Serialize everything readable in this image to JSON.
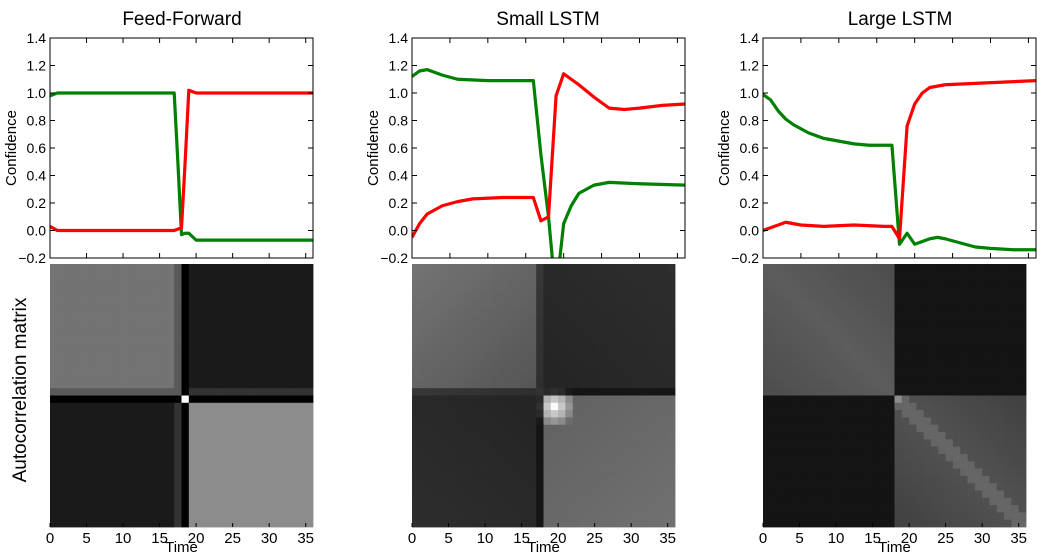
{
  "figure": {
    "row_label": "Autocorrelation matrix"
  },
  "chart_data": [
    {
      "type": "line",
      "title": "Feed-Forward",
      "xlabel": "",
      "ylabel": "Confidence",
      "ylim": [
        -0.2,
        1.4
      ],
      "xlim": [
        0,
        36
      ],
      "yticks": [
        "1.4",
        "1.2",
        "1.0",
        "0.8",
        "0.6",
        "0.4",
        "0.2",
        "0.0",
        "−0.2"
      ],
      "series": [
        {
          "color": "#008000",
          "points": [
            [
              0,
              0.98
            ],
            [
              1,
              1.0
            ],
            [
              5,
              1.0
            ],
            [
              10,
              1.0
            ],
            [
              15,
              1.0
            ],
            [
              17,
              1.0
            ],
            [
              17.5,
              0.5
            ],
            [
              18,
              -0.03
            ],
            [
              18.5,
              -0.02
            ],
            [
              19,
              -0.02
            ],
            [
              20,
              -0.07
            ],
            [
              25,
              -0.07
            ],
            [
              30,
              -0.07
            ],
            [
              36,
              -0.07
            ]
          ]
        },
        {
          "color": "#ff0000",
          "points": [
            [
              0,
              0.03
            ],
            [
              1,
              0.0
            ],
            [
              5,
              0.0
            ],
            [
              10,
              0.0
            ],
            [
              15,
              0.0
            ],
            [
              17,
              0.0
            ],
            [
              18,
              0.02
            ],
            [
              18.5,
              0.5
            ],
            [
              19,
              1.02
            ],
            [
              20,
              1.0
            ],
            [
              25,
              1.0
            ],
            [
              30,
              1.0
            ],
            [
              36,
              1.0
            ]
          ]
        }
      ]
    },
    {
      "type": "line",
      "title": "Small LSTM",
      "xlabel": "",
      "ylabel": "Confidence",
      "ylim": [
        -0.2,
        1.4
      ],
      "xlim": [
        0,
        36
      ],
      "yticks": [
        "1.4",
        "1.2",
        "1.0",
        "0.8",
        "0.6",
        "0.4",
        "0.2",
        "0.0",
        "−0.2"
      ],
      "series": [
        {
          "color": "#008000",
          "points": [
            [
              0,
              1.12
            ],
            [
              1,
              1.16
            ],
            [
              2,
              1.17
            ],
            [
              4,
              1.13
            ],
            [
              6,
              1.1
            ],
            [
              10,
              1.09
            ],
            [
              14,
              1.09
            ],
            [
              16,
              1.09
            ],
            [
              17,
              0.55
            ],
            [
              18,
              0.1
            ],
            [
              18.5,
              -0.2
            ]
          ]
        },
        {
          "color": "#008000",
          "points": [
            [
              19.5,
              -0.2
            ],
            [
              20,
              0.05
            ],
            [
              21,
              0.18
            ],
            [
              22,
              0.27
            ],
            [
              24,
              0.33
            ],
            [
              26,
              0.35
            ],
            [
              30,
              0.34
            ],
            [
              36,
              0.33
            ]
          ]
        },
        {
          "color": "#ff0000",
          "points": [
            [
              0,
              -0.05
            ],
            [
              1,
              0.05
            ],
            [
              2,
              0.12
            ],
            [
              4,
              0.18
            ],
            [
              6,
              0.21
            ],
            [
              8,
              0.23
            ],
            [
              12,
              0.24
            ],
            [
              16,
              0.24
            ],
            [
              17,
              0.07
            ],
            [
              18,
              0.1
            ],
            [
              19,
              0.98
            ],
            [
              20,
              1.14
            ],
            [
              21,
              1.1
            ],
            [
              22,
              1.06
            ],
            [
              24,
              0.97
            ],
            [
              26,
              0.89
            ],
            [
              28,
              0.88
            ],
            [
              30,
              0.89
            ],
            [
              33,
              0.91
            ],
            [
              36,
              0.92
            ]
          ]
        }
      ]
    },
    {
      "type": "line",
      "title": "Large LSTM",
      "xlabel": "",
      "ylabel": "Confidence",
      "ylim": [
        -0.2,
        1.4
      ],
      "xlim": [
        0,
        36
      ],
      "yticks": [
        "1.4",
        "1.2",
        "1.0",
        "0.8",
        "0.6",
        "0.4",
        "0.2",
        "0.0",
        "−0.2"
      ],
      "series": [
        {
          "color": "#008000",
          "points": [
            [
              0,
              0.99
            ],
            [
              1,
              0.95
            ],
            [
              2,
              0.87
            ],
            [
              3,
              0.81
            ],
            [
              4,
              0.77
            ],
            [
              6,
              0.71
            ],
            [
              8,
              0.67
            ],
            [
              10,
              0.65
            ],
            [
              12,
              0.63
            ],
            [
              14,
              0.62
            ],
            [
              16,
              0.62
            ],
            [
              17,
              0.62
            ],
            [
              18,
              -0.1
            ],
            [
              19,
              -0.02
            ],
            [
              20,
              -0.1
            ],
            [
              21,
              -0.08
            ],
            [
              22,
              -0.06
            ],
            [
              23,
              -0.05
            ],
            [
              24,
              -0.06
            ],
            [
              26,
              -0.09
            ],
            [
              28,
              -0.12
            ],
            [
              30,
              -0.13
            ],
            [
              33,
              -0.14
            ],
            [
              36,
              -0.14
            ]
          ]
        },
        {
          "color": "#ff0000",
          "points": [
            [
              0,
              0.0
            ],
            [
              1,
              0.02
            ],
            [
              2,
              0.04
            ],
            [
              3,
              0.06
            ],
            [
              4,
              0.05
            ],
            [
              5,
              0.04
            ],
            [
              8,
              0.03
            ],
            [
              12,
              0.04
            ],
            [
              16,
              0.03
            ],
            [
              17,
              0.03
            ],
            [
              18,
              -0.06
            ],
            [
              19,
              0.76
            ],
            [
              20,
              0.92
            ],
            [
              21,
              1.0
            ],
            [
              22,
              1.04
            ],
            [
              24,
              1.06
            ],
            [
              28,
              1.07
            ],
            [
              32,
              1.08
            ],
            [
              36,
              1.09
            ]
          ]
        }
      ]
    },
    {
      "type": "heatmap",
      "title": "",
      "xlabel": "Time",
      "xticks": [
        "0",
        "5",
        "10",
        "15",
        "20",
        "25",
        "30",
        "35"
      ],
      "n": 36,
      "notes": "Feed-Forward autocorrelation: two uniform blocks split near t=18, bright diagonal pixel at the switch, black cross-lines."
    },
    {
      "type": "heatmap",
      "title": "",
      "xlabel": "Time",
      "xticks": [
        "0",
        "5",
        "10",
        "15",
        "20",
        "25",
        "30",
        "35"
      ],
      "n": 36,
      "notes": "Small LSTM autocorrelation: graded blocks with a bright blob near t=19."
    },
    {
      "type": "heatmap",
      "title": "",
      "xlabel": "Time",
      "xticks": [
        "0",
        "5",
        "10",
        "15",
        "20",
        "25",
        "30",
        "35"
      ],
      "n": 36,
      "notes": "Large LSTM autocorrelation: dark blocks with lighter diagonal band, small bright pixel near t=18."
    }
  ]
}
